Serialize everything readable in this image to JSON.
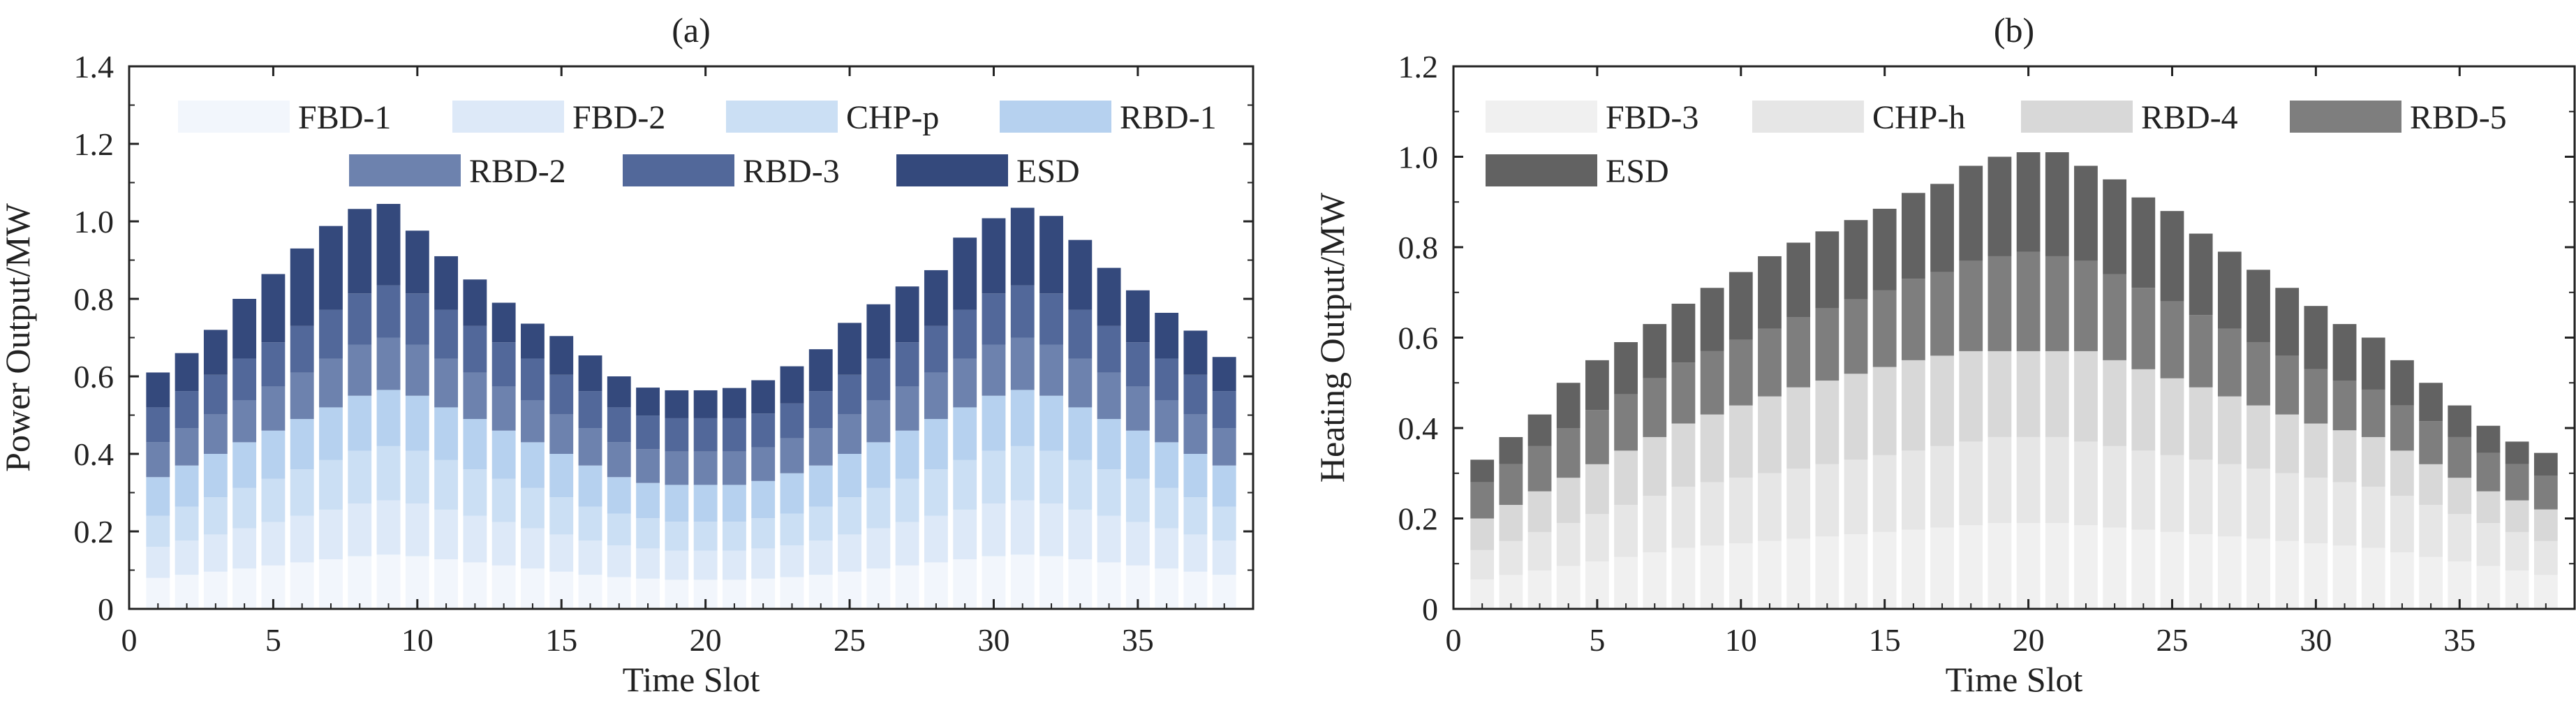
{
  "chart_data": [
    {
      "type": "bar",
      "stacked": true,
      "panel_label": "(a)",
      "xlabel": "Time Slot",
      "ylabel": "Power Output/MW",
      "ylim": [
        0,
        1.4
      ],
      "xlim": [
        0,
        39
      ],
      "yticks": [
        0,
        0.2,
        0.4,
        0.6,
        0.8,
        1.0,
        1.2,
        1.4
      ],
      "ytick_labels": [
        "0",
        "0.2",
        "0.4",
        "0.6",
        "0.8",
        "1.0",
        "1.2",
        "1.4"
      ],
      "xticks": [
        0,
        5,
        10,
        15,
        20,
        25,
        30,
        35
      ],
      "xtick_labels": [
        "0",
        "5",
        "10",
        "15",
        "20",
        "25",
        "30",
        "35"
      ],
      "categories": [
        1,
        2,
        3,
        4,
        5,
        6,
        7,
        8,
        9,
        10,
        11,
        12,
        13,
        14,
        15,
        16,
        17,
        18,
        19,
        20,
        21,
        22,
        23,
        24,
        25,
        26,
        27,
        28,
        29,
        30,
        31,
        32,
        33,
        34,
        35,
        36,
        37,
        38
      ],
      "legend_rows": [
        [
          "FBD-1",
          "FBD-2",
          "CHP-p",
          "RBD-1"
        ],
        [
          "RBD-2",
          "RBD-3",
          "ESD"
        ]
      ],
      "series": [
        {
          "name": "FBD-1",
          "color": "#f2f6fc",
          "values": [
            0.08,
            0.088,
            0.096,
            0.104,
            0.112,
            0.12,
            0.128,
            0.136,
            0.14,
            0.136,
            0.128,
            0.12,
            0.112,
            0.104,
            0.096,
            0.088,
            0.082,
            0.078,
            0.075,
            0.075,
            0.075,
            0.078,
            0.082,
            0.088,
            0.096,
            0.104,
            0.112,
            0.12,
            0.128,
            0.136,
            0.14,
            0.136,
            0.128,
            0.12,
            0.112,
            0.104,
            0.096,
            0.088
          ]
        },
        {
          "name": "FBD-2",
          "color": "#dde9f8",
          "values": [
            0.08,
            0.088,
            0.096,
            0.104,
            0.112,
            0.12,
            0.128,
            0.136,
            0.14,
            0.136,
            0.128,
            0.12,
            0.112,
            0.104,
            0.096,
            0.088,
            0.082,
            0.078,
            0.075,
            0.075,
            0.075,
            0.078,
            0.082,
            0.088,
            0.096,
            0.104,
            0.112,
            0.12,
            0.128,
            0.136,
            0.14,
            0.136,
            0.128,
            0.12,
            0.112,
            0.104,
            0.096,
            0.088
          ]
        },
        {
          "name": "CHP-p",
          "color": "#cbdff4",
          "values": [
            0.08,
            0.088,
            0.096,
            0.104,
            0.112,
            0.12,
            0.128,
            0.136,
            0.14,
            0.136,
            0.128,
            0.12,
            0.112,
            0.104,
            0.096,
            0.088,
            0.082,
            0.078,
            0.075,
            0.075,
            0.075,
            0.078,
            0.082,
            0.088,
            0.096,
            0.104,
            0.112,
            0.12,
            0.128,
            0.136,
            0.14,
            0.136,
            0.128,
            0.12,
            0.112,
            0.104,
            0.096,
            0.088
          ]
        },
        {
          "name": "RBD-1",
          "color": "#b6d1ef",
          "values": [
            0.1,
            0.106,
            0.112,
            0.118,
            0.124,
            0.13,
            0.136,
            0.142,
            0.145,
            0.142,
            0.136,
            0.13,
            0.124,
            0.118,
            0.112,
            0.106,
            0.094,
            0.091,
            0.095,
            0.095,
            0.095,
            0.096,
            0.104,
            0.106,
            0.112,
            0.118,
            0.124,
            0.13,
            0.136,
            0.142,
            0.145,
            0.142,
            0.136,
            0.13,
            0.124,
            0.118,
            0.112,
            0.106
          ]
        },
        {
          "name": "RBD-2",
          "color": "#6d82ae",
          "values": [
            0.09,
            0.096,
            0.102,
            0.108,
            0.114,
            0.12,
            0.126,
            0.132,
            0.135,
            0.132,
            0.126,
            0.12,
            0.114,
            0.108,
            0.102,
            0.096,
            0.09,
            0.087,
            0.086,
            0.086,
            0.086,
            0.087,
            0.09,
            0.096,
            0.102,
            0.108,
            0.114,
            0.12,
            0.126,
            0.132,
            0.135,
            0.132,
            0.126,
            0.12,
            0.114,
            0.108,
            0.102,
            0.096
          ]
        },
        {
          "name": "RBD-3",
          "color": "#52689a",
          "values": [
            0.09,
            0.096,
            0.102,
            0.108,
            0.114,
            0.12,
            0.126,
            0.132,
            0.135,
            0.132,
            0.126,
            0.12,
            0.114,
            0.108,
            0.102,
            0.096,
            0.09,
            0.087,
            0.086,
            0.086,
            0.086,
            0.087,
            0.09,
            0.096,
            0.102,
            0.108,
            0.114,
            0.12,
            0.126,
            0.132,
            0.135,
            0.132,
            0.126,
            0.12,
            0.114,
            0.108,
            0.102,
            0.096
          ]
        },
        {
          "name": "ESD",
          "color": "#34497c",
          "values": [
            0.09,
            0.098,
            0.116,
            0.154,
            0.176,
            0.2,
            0.216,
            0.218,
            0.21,
            0.162,
            0.138,
            0.12,
            0.102,
            0.09,
            0.1,
            0.092,
            0.08,
            0.072,
            0.072,
            0.072,
            0.078,
            0.086,
            0.096,
            0.108,
            0.134,
            0.14,
            0.144,
            0.144,
            0.186,
            0.194,
            0.2,
            0.2,
            0.18,
            0.15,
            0.134,
            0.118,
            0.114,
            0.088
          ]
        }
      ]
    },
    {
      "type": "bar",
      "stacked": true,
      "panel_label": "(b)",
      "xlabel": "Time Slot",
      "ylabel": "Heating Output/MW",
      "ylim": [
        0,
        1.2
      ],
      "xlim": [
        0,
        39
      ],
      "yticks": [
        0,
        0.2,
        0.4,
        0.6,
        0.8,
        1.0,
        1.2
      ],
      "ytick_labels": [
        "0",
        "0.2",
        "0.4",
        "0.6",
        "0.8",
        "1.0",
        "1.2"
      ],
      "xticks": [
        0,
        5,
        10,
        15,
        20,
        25,
        30,
        35
      ],
      "xtick_labels": [
        "0",
        "5",
        "10",
        "15",
        "20",
        "25",
        "30",
        "35"
      ],
      "categories": [
        1,
        2,
        3,
        4,
        5,
        6,
        7,
        8,
        9,
        10,
        11,
        12,
        13,
        14,
        15,
        16,
        17,
        18,
        19,
        20,
        21,
        22,
        23,
        24,
        25,
        26,
        27,
        28,
        29,
        30,
        31,
        32,
        33,
        34,
        35,
        36,
        37,
        38
      ],
      "legend_rows": [
        [
          "FBD-3",
          "CHP-h",
          "RBD-4",
          "RBD-5"
        ],
        [
          "ESD"
        ]
      ],
      "series": [
        {
          "name": "FBD-3",
          "color": "#f0f0f0",
          "values": [
            0.065,
            0.075,
            0.085,
            0.095,
            0.105,
            0.115,
            0.125,
            0.135,
            0.14,
            0.145,
            0.15,
            0.155,
            0.16,
            0.165,
            0.17,
            0.175,
            0.18,
            0.185,
            0.19,
            0.19,
            0.19,
            0.185,
            0.18,
            0.175,
            0.17,
            0.165,
            0.16,
            0.155,
            0.15,
            0.145,
            0.14,
            0.135,
            0.125,
            0.115,
            0.105,
            0.095,
            0.085,
            0.075
          ]
        },
        {
          "name": "CHP-h",
          "color": "#e6e6e6",
          "values": [
            0.065,
            0.075,
            0.085,
            0.095,
            0.105,
            0.115,
            0.125,
            0.135,
            0.14,
            0.145,
            0.15,
            0.155,
            0.16,
            0.165,
            0.17,
            0.175,
            0.18,
            0.185,
            0.19,
            0.19,
            0.19,
            0.185,
            0.18,
            0.175,
            0.17,
            0.165,
            0.16,
            0.155,
            0.15,
            0.145,
            0.14,
            0.135,
            0.125,
            0.115,
            0.105,
            0.095,
            0.085,
            0.075
          ]
        },
        {
          "name": "RBD-4",
          "color": "#d8d8d8",
          "values": [
            0.07,
            0.08,
            0.09,
            0.1,
            0.11,
            0.12,
            0.13,
            0.14,
            0.15,
            0.16,
            0.17,
            0.18,
            0.185,
            0.19,
            0.195,
            0.2,
            0.2,
            0.2,
            0.19,
            0.19,
            0.19,
            0.2,
            0.19,
            0.18,
            0.17,
            0.16,
            0.15,
            0.14,
            0.13,
            0.12,
            0.115,
            0.11,
            0.1,
            0.09,
            0.08,
            0.07,
            0.07,
            0.07
          ]
        },
        {
          "name": "RBD-5",
          "color": "#7e7e7e",
          "values": [
            0.08,
            0.09,
            0.1,
            0.11,
            0.12,
            0.125,
            0.13,
            0.135,
            0.14,
            0.145,
            0.15,
            0.155,
            0.16,
            0.165,
            0.17,
            0.18,
            0.185,
            0.2,
            0.21,
            0.22,
            0.21,
            0.2,
            0.19,
            0.18,
            0.17,
            0.16,
            0.15,
            0.14,
            0.13,
            0.12,
            0.11,
            0.105,
            0.1,
            0.095,
            0.09,
            0.085,
            0.08,
            0.075
          ]
        },
        {
          "name": "ESD",
          "color": "#626262",
          "values": [
            0.05,
            0.06,
            0.07,
            0.1,
            0.11,
            0.115,
            0.12,
            0.13,
            0.14,
            0.15,
            0.16,
            0.165,
            0.17,
            0.175,
            0.18,
            0.19,
            0.195,
            0.21,
            0.22,
            0.22,
            0.23,
            0.21,
            0.21,
            0.2,
            0.2,
            0.18,
            0.17,
            0.16,
            0.15,
            0.14,
            0.125,
            0.115,
            0.1,
            0.085,
            0.07,
            0.06,
            0.05,
            0.05
          ]
        }
      ]
    }
  ]
}
